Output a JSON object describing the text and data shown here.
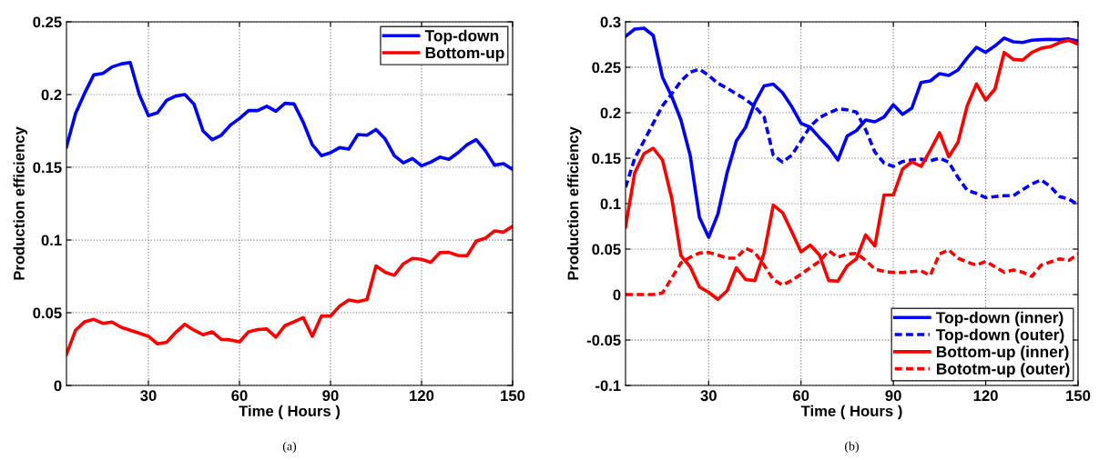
{
  "chart_data": [
    {
      "type": "line",
      "xlabel": "Time ( Hours )",
      "ylabel": "Production efficiency",
      "annotations": [
        "(a)"
      ],
      "x": [
        3,
        6,
        9,
        12,
        15,
        18,
        21,
        24,
        27,
        30,
        33,
        36,
        39,
        42,
        45,
        48,
        51,
        54,
        57,
        60,
        63,
        66,
        69,
        72,
        75,
        78,
        81,
        84,
        87,
        90,
        93,
        96,
        99,
        102,
        105,
        108,
        111,
        114,
        117,
        120,
        123,
        126,
        129,
        132,
        135,
        138,
        141,
        144,
        147,
        150
      ],
      "series": [
        {
          "name": "Top-down",
          "color": "#0000ff",
          "line_style": "solid",
          "values": [
            0.164,
            0.187,
            0.201,
            0.2135,
            0.2145,
            0.219,
            0.221,
            0.222,
            0.2,
            0.1855,
            0.1875,
            0.196,
            0.199,
            0.2,
            0.1935,
            0.175,
            0.169,
            0.172,
            0.179,
            0.1835,
            0.189,
            0.189,
            0.192,
            0.1885,
            0.194,
            0.1935,
            0.181,
            0.1655,
            0.158,
            0.16,
            0.1635,
            0.1625,
            0.1725,
            0.172,
            0.176,
            0.1695,
            0.158,
            0.153,
            0.156,
            0.151,
            0.1535,
            0.157,
            0.1555,
            0.16,
            0.1655,
            0.169,
            0.1615,
            0.1515,
            0.1525,
            0.1485
          ]
        },
        {
          "name": "Bottom-up",
          "color": "#ff0000",
          "line_style": "solid",
          "values": [
            0.0214,
            0.038,
            0.0438,
            0.0454,
            0.0427,
            0.0436,
            0.04,
            0.038,
            0.0359,
            0.0338,
            0.0286,
            0.0297,
            0.0365,
            0.0421,
            0.038,
            0.0349,
            0.0369,
            0.0317,
            0.0313,
            0.03,
            0.0369,
            0.0384,
            0.0388,
            0.0332,
            0.0411,
            0.0438,
            0.0467,
            0.0338,
            0.0477,
            0.0477,
            0.0546,
            0.0587,
            0.0577,
            0.0591,
            0.0822,
            0.0778,
            0.0757,
            0.0836,
            0.0873,
            0.0867,
            0.0846,
            0.0913,
            0.0915,
            0.0894,
            0.0892,
            0.0992,
            0.1012,
            0.1062,
            0.1054,
            0.1095
          ]
        }
      ],
      "xlim": [
        3,
        150
      ],
      "xticks": [
        30,
        60,
        90,
        120,
        150
      ],
      "ylim": [
        0,
        0.25
      ],
      "yticks": [
        0,
        0.05,
        0.1,
        0.15,
        0.2,
        0.25
      ],
      "grid": true,
      "legend": "top right",
      "marker": "none"
    },
    {
      "type": "line",
      "xlabel": "Time ( Hours )",
      "ylabel": "Production efficiency",
      "annotations": [
        "(b)"
      ],
      "x": [
        3,
        6,
        9,
        12,
        15,
        18,
        21,
        24,
        27,
        30,
        33,
        36,
        39,
        42,
        45,
        48,
        51,
        54,
        57,
        60,
        63,
        66,
        69,
        72,
        75,
        78,
        81,
        84,
        87,
        90,
        93,
        96,
        99,
        102,
        105,
        108,
        111,
        114,
        117,
        120,
        123,
        126,
        129,
        132,
        135,
        138,
        141,
        144,
        147,
        150
      ],
      "series": [
        {
          "name": "Top-down (inner)",
          "color": "#0000ff",
          "line_style": "solid",
          "values": [
            0.284,
            0.292,
            0.293,
            0.285,
            0.239,
            0.218,
            0.192,
            0.153,
            0.085,
            0.063,
            0.0885,
            0.134,
            0.169,
            0.184,
            0.211,
            0.2295,
            0.2315,
            0.222,
            0.2067,
            0.1884,
            0.184,
            0.1726,
            0.162,
            0.148,
            0.1744,
            0.1803,
            0.192,
            0.19,
            0.1954,
            0.2088,
            0.1982,
            0.205,
            0.2333,
            0.235,
            0.243,
            0.241,
            0.247,
            0.2604,
            0.272,
            0.2664,
            0.2734,
            0.2821,
            0.278,
            0.2772,
            0.2797,
            0.2804,
            0.2807,
            0.2804,
            0.2811,
            0.279
          ]
        },
        {
          "name": "Top-down (outer)",
          "color": "#0000ff",
          "line_style": "dashed",
          "values": [
            0.118,
            0.15,
            0.169,
            0.1884,
            0.2077,
            0.2207,
            0.2347,
            0.2446,
            0.248,
            0.241,
            0.2323,
            0.227,
            0.2207,
            0.2147,
            0.2067,
            0.1954,
            0.1533,
            0.1456,
            0.1533,
            0.169,
            0.185,
            0.1947,
            0.1996,
            0.2042,
            0.2032,
            0.2007,
            0.1814,
            0.1568,
            0.1445,
            0.141,
            0.1463,
            0.148,
            0.149,
            0.147,
            0.15,
            0.1456,
            0.1287,
            0.1147,
            0.1112,
            0.1066,
            0.1077,
            0.1087,
            0.1087,
            0.1154,
            0.1217,
            0.126,
            0.1189,
            0.1077,
            0.105,
            0.0989
          ]
        },
        {
          "name": "Bottom-up (inner)",
          "color": "#ff0000",
          "line_style": "solid",
          "values": [
            0.0744,
            0.134,
            0.155,
            0.161,
            0.148,
            0.106,
            0.0428,
            0.0305,
            0.0084,
            0.0025,
            -0.0053,
            0.0042,
            0.0295,
            0.0165,
            0.0154,
            0.0456,
            0.0983,
            0.0902,
            0.0691,
            0.047,
            0.0544,
            0.0435,
            0.0154,
            0.0147,
            0.0316,
            0.0393,
            0.0656,
            0.0534,
            0.1095,
            0.1095,
            0.138,
            0.146,
            0.141,
            0.1586,
            0.178,
            0.1516,
            0.1674,
            0.2077,
            0.2316,
            0.214,
            0.226,
            0.2663,
            0.2586,
            0.2579,
            0.2663,
            0.2709,
            0.2727,
            0.2772,
            0.2797,
            0.2755
          ]
        },
        {
          "name": "Bototm-up (outer)",
          "color": "#ff0000",
          "line_style": "dashed",
          "values": [
            0,
            0,
            0,
            0,
            0.0018,
            0.018,
            0.0347,
            0.041,
            0.0456,
            0.0463,
            0.0435,
            0.04,
            0.04,
            0.0509,
            0.0463,
            0.0323,
            0.0165,
            0.0105,
            0.0154,
            0.0225,
            0.0295,
            0.0365,
            0.0481,
            0.041,
            0.0446,
            0.0453,
            0.0376,
            0.0281,
            0.0253,
            0.0242,
            0.0242,
            0.0253,
            0.026,
            0.0211,
            0.0446,
            0.0491,
            0.04,
            0.0358,
            0.0323,
            0.0365,
            0.0305,
            0.0246,
            0.027,
            0.0246,
            0.02,
            0.0323,
            0.0358,
            0.0393,
            0.0376,
            0.0446
          ]
        }
      ],
      "xlim": [
        3,
        150
      ],
      "xticks": [
        30,
        60,
        90,
        120,
        150
      ],
      "ylim": [
        -0.1,
        0.3
      ],
      "yticks": [
        -0.1,
        -0.05,
        0,
        0.05,
        0.1,
        0.15,
        0.2,
        0.25,
        0.3
      ],
      "grid": true,
      "legend": "bottom right",
      "marker": "none"
    }
  ]
}
